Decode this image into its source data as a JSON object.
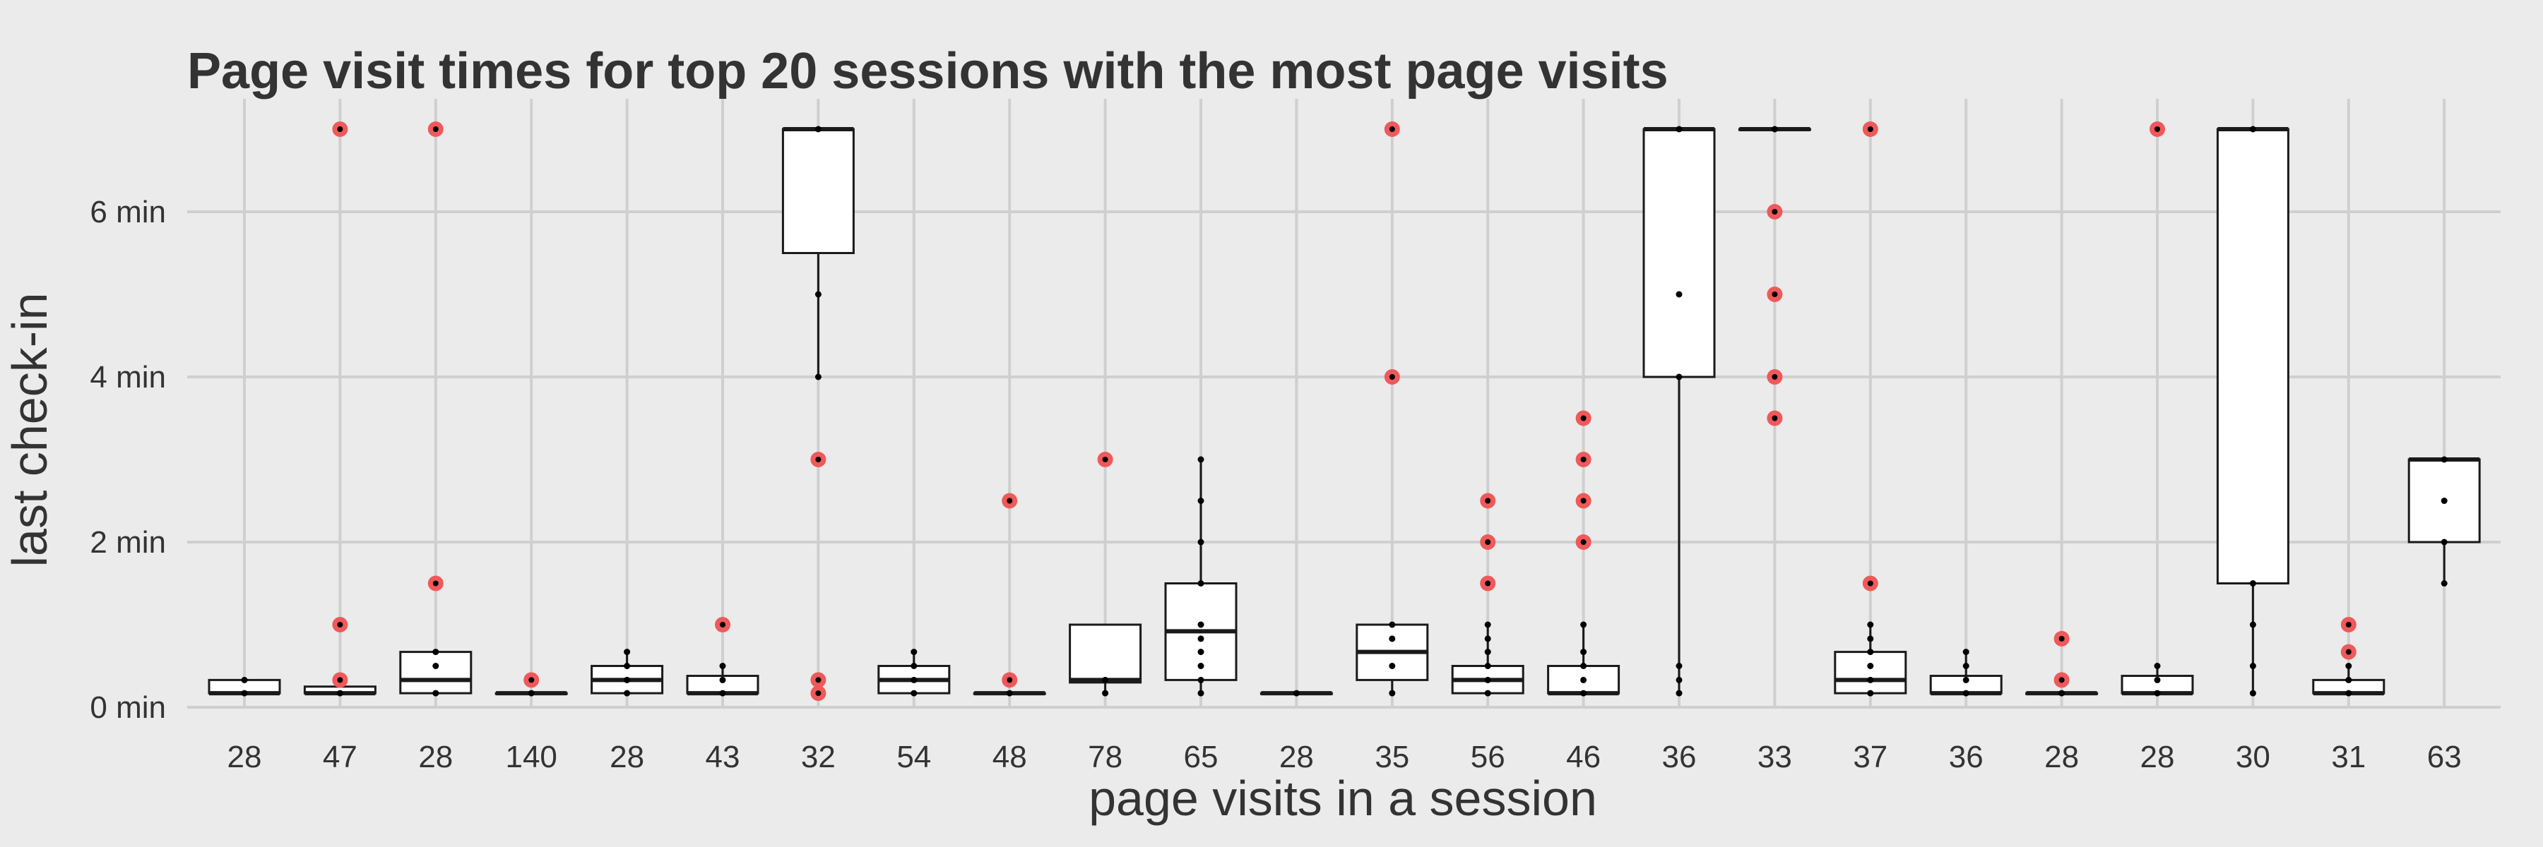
{
  "chart_data": {
    "type": "box",
    "title": "Page visit times for top 20 sessions with the most page visits",
    "xlabel": "page visits in a session",
    "ylabel": "last check-in",
    "ylim": [
      0,
      7.2
    ],
    "y_ticks": [
      {
        "value": 0,
        "label": "0 min"
      },
      {
        "value": 2,
        "label": "2 min"
      },
      {
        "value": 4,
        "label": "4 min"
      },
      {
        "value": 6,
        "label": "6 min"
      }
    ],
    "grid": true,
    "legend": "none",
    "colors": {
      "background": "#ebebeb",
      "grid": "#cfcfcf",
      "box_fill": "#ffffff",
      "box_stroke": "#1a1a1a",
      "outlier": "#f0595a",
      "point": "#000000"
    },
    "categories": [
      "28",
      "47",
      "28",
      "140",
      "28",
      "43",
      "32",
      "54",
      "48",
      "78",
      "65",
      "28",
      "35",
      "56",
      "46",
      "36",
      "33",
      "37",
      "36",
      "28",
      "28",
      "30",
      "31",
      "63"
    ],
    "boxes": [
      {
        "q1": 0.17,
        "median": 0.17,
        "q3": 0.33,
        "whisker_low": 0.17,
        "whisker_high": 0.33,
        "points": [
          0.17,
          0.33
        ],
        "outliers": []
      },
      {
        "q1": 0.17,
        "median": 0.17,
        "q3": 0.25,
        "whisker_low": 0.17,
        "whisker_high": 0.25,
        "points": [
          0.17
        ],
        "outliers": [
          0.33,
          1,
          7
        ]
      },
      {
        "q1": 0.17,
        "median": 0.33,
        "q3": 0.67,
        "whisker_low": 0.17,
        "whisker_high": 0.67,
        "points": [
          0.17,
          0.5,
          0.67
        ],
        "outliers": [
          1.5,
          7
        ]
      },
      {
        "q1": 0.17,
        "median": 0.17,
        "q3": 0.17,
        "whisker_low": 0.17,
        "whisker_high": 0.17,
        "points": [
          0.17
        ],
        "outliers": [
          0.33
        ]
      },
      {
        "q1": 0.17,
        "median": 0.33,
        "q3": 0.5,
        "whisker_low": 0.17,
        "whisker_high": 0.67,
        "points": [
          0.17,
          0.33,
          0.5,
          0.67
        ],
        "outliers": []
      },
      {
        "q1": 0.17,
        "median": 0.17,
        "q3": 0.38,
        "whisker_low": 0.17,
        "whisker_high": 0.5,
        "points": [
          0.17,
          0.33,
          0.5
        ],
        "outliers": [
          1
        ]
      },
      {
        "q1": 5.5,
        "median": 7,
        "q3": 7,
        "whisker_low": 4,
        "whisker_high": 7,
        "points": [
          4,
          5,
          7
        ],
        "outliers": [
          0.17,
          0.33,
          3
        ]
      },
      {
        "q1": 0.17,
        "median": 0.33,
        "q3": 0.5,
        "whisker_low": 0.17,
        "whisker_high": 0.67,
        "points": [
          0.17,
          0.33,
          0.5,
          0.67
        ],
        "outliers": []
      },
      {
        "q1": 0.17,
        "median": 0.17,
        "q3": 0.17,
        "whisker_low": 0.17,
        "whisker_high": 0.17,
        "points": [
          0.17
        ],
        "outliers": [
          0.33,
          2.5
        ]
      },
      {
        "q1": 0.3,
        "median": 0.33,
        "q3": 1,
        "whisker_low": 0.17,
        "whisker_high": 1,
        "points": [
          0.17,
          0.33
        ],
        "outliers": [
          3
        ]
      },
      {
        "q1": 0.33,
        "median": 0.92,
        "q3": 1.5,
        "whisker_low": 0.17,
        "whisker_high": 3,
        "points": [
          0.17,
          0.33,
          0.5,
          0.67,
          0.83,
          1,
          1.5,
          2,
          2.5,
          3
        ],
        "outliers": []
      },
      {
        "q1": 0.17,
        "median": 0.17,
        "q3": 0.17,
        "whisker_low": 0.17,
        "whisker_high": 0.17,
        "points": [
          0.17
        ],
        "outliers": []
      },
      {
        "q1": 0.33,
        "median": 0.67,
        "q3": 1,
        "whisker_low": 0.17,
        "whisker_high": 1,
        "points": [
          0.17,
          0.5,
          0.83,
          1
        ],
        "outliers": [
          4,
          7
        ]
      },
      {
        "q1": 0.17,
        "median": 0.33,
        "q3": 0.5,
        "whisker_low": 0.17,
        "whisker_high": 1,
        "points": [
          0.17,
          0.33,
          0.5,
          0.67,
          0.83,
          1
        ],
        "outliers": [
          1.5,
          2,
          2.5
        ]
      },
      {
        "q1": 0.17,
        "median": 0.17,
        "q3": 0.5,
        "whisker_low": 0.17,
        "whisker_high": 1,
        "points": [
          0.17,
          0.33,
          0.5,
          0.67,
          1
        ],
        "outliers": [
          2,
          2.5,
          3,
          3.5
        ]
      },
      {
        "q1": 4,
        "median": 7,
        "q3": 7,
        "whisker_low": 0.17,
        "whisker_high": 7,
        "points": [
          0.17,
          0.33,
          0.5,
          4,
          5,
          7
        ],
        "outliers": []
      },
      {
        "q1": 7,
        "median": 7,
        "q3": 7,
        "whisker_low": 7,
        "whisker_high": 7,
        "points": [
          7
        ],
        "outliers": [
          3.5,
          4,
          5,
          6
        ]
      },
      {
        "q1": 0.17,
        "median": 0.33,
        "q3": 0.67,
        "whisker_low": 0.17,
        "whisker_high": 1,
        "points": [
          0.17,
          0.33,
          0.5,
          0.67,
          0.83,
          1
        ],
        "outliers": [
          1.5,
          7
        ]
      },
      {
        "q1": 0.17,
        "median": 0.17,
        "q3": 0.38,
        "whisker_low": 0.17,
        "whisker_high": 0.67,
        "points": [
          0.17,
          0.33,
          0.5,
          0.67
        ],
        "outliers": []
      },
      {
        "q1": 0.17,
        "median": 0.17,
        "q3": 0.17,
        "whisker_low": 0.17,
        "whisker_high": 0.17,
        "points": [
          0.17
        ],
        "outliers": [
          0.33,
          0.83
        ]
      },
      {
        "q1": 0.17,
        "median": 0.17,
        "q3": 0.38,
        "whisker_low": 0.17,
        "whisker_high": 0.5,
        "points": [
          0.17,
          0.33,
          0.5
        ],
        "outliers": [
          7
        ]
      },
      {
        "q1": 1.5,
        "median": 7,
        "q3": 7,
        "whisker_low": 0.17,
        "whisker_high": 7,
        "points": [
          0.17,
          0.5,
          1,
          1.5,
          7
        ],
        "outliers": []
      },
      {
        "q1": 0.17,
        "median": 0.17,
        "q3": 0.33,
        "whisker_low": 0.17,
        "whisker_high": 0.5,
        "points": [
          0.17,
          0.33,
          0.5
        ],
        "outliers": [
          0.67,
          1
        ]
      },
      {
        "q1": 2,
        "median": 3,
        "q3": 3,
        "whisker_low": 1.5,
        "whisker_high": 3,
        "points": [
          1.5,
          2,
          2.5,
          3
        ],
        "outliers": []
      }
    ]
  }
}
